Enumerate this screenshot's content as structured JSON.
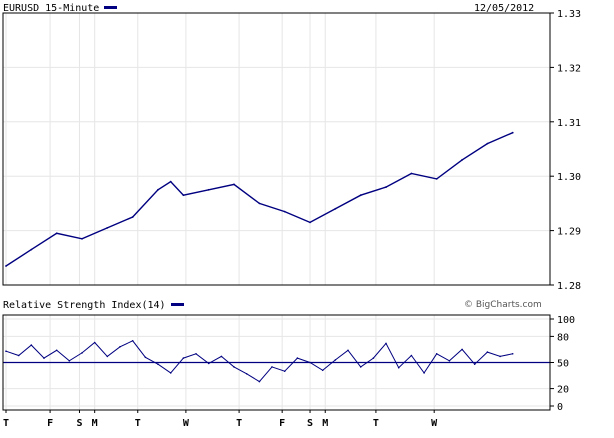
{
  "header": {
    "symbol_title": "EURUSD 15-Minute",
    "date": "12/05/2012"
  },
  "rsi_header": {
    "label": "Relative Strength Index(14)",
    "copyright": "© BigCharts.com"
  },
  "colors": {
    "series": "#000080",
    "grid": "#e6e6e6",
    "frame": "#000000",
    "background": "#ffffff"
  },
  "chart_data": [
    {
      "type": "line",
      "title": "EURUSD 15-Minute",
      "series": [
        {
          "name": "EURUSD 15-Minute",
          "x": [
            0,
            0.5,
            1,
            1.5,
            2,
            2.5,
            3,
            3.25,
            3.5,
            4,
            4.5,
            5,
            5.5,
            6,
            6.5,
            7,
            7.5,
            8,
            8.5,
            9,
            9.5,
            10
          ],
          "values": [
            1.2835,
            1.2865,
            1.2895,
            1.2885,
            1.2905,
            1.2925,
            1.2975,
            1.299,
            1.2965,
            1.2975,
            1.2985,
            1.295,
            1.2935,
            1.2915,
            1.294,
            1.2965,
            1.298,
            1.3005,
            1.2995,
            1.303,
            1.306,
            1.308
          ]
        }
      ],
      "ylim": [
        1.28,
        1.33
      ],
      "yticks": [
        "1.33",
        "1.32",
        "1.31",
        "1.30",
        "1.29",
        "1.28"
      ],
      "ytick_values": [
        1.33,
        1.32,
        1.31,
        1.3,
        1.29,
        1.28
      ],
      "grid": true
    },
    {
      "type": "line",
      "title": "Relative Strength Index(14)",
      "series": [
        {
          "name": "Relative Strength Index(14)",
          "x": [
            0,
            0.25,
            0.5,
            0.75,
            1,
            1.25,
            1.5,
            1.75,
            2,
            2.25,
            2.5,
            2.75,
            3,
            3.25,
            3.5,
            3.75,
            4,
            4.25,
            4.5,
            4.75,
            5,
            5.25,
            5.5,
            5.75,
            6,
            6.25,
            6.5,
            6.75,
            7,
            7.25,
            7.5,
            7.75,
            8,
            8.25,
            8.5,
            8.75,
            9,
            9.25,
            9.5,
            9.75,
            10
          ],
          "values": [
            63,
            58,
            70,
            55,
            64,
            52,
            61,
            73,
            57,
            68,
            75,
            56,
            48,
            38,
            55,
            60,
            49,
            57,
            45,
            37,
            28,
            45,
            40,
            55,
            50,
            41,
            53,
            64,
            45,
            55,
            72,
            44,
            58,
            38,
            60,
            52,
            65,
            48,
            62,
            57,
            60
          ]
        }
      ],
      "ylim": [
        0,
        100
      ],
      "yticks": [
        "100",
        "80",
        "50",
        "20",
        "0"
      ],
      "ytick_values": [
        100,
        80,
        50,
        20,
        0
      ],
      "reference_line": 50,
      "grid": true
    }
  ],
  "x_axis": {
    "labels": [
      "T",
      "F",
      "S",
      "M",
      "T",
      "W",
      "T",
      "F",
      "S",
      "M",
      "T",
      "W"
    ],
    "positions": [
      0,
      0.87,
      1.45,
      1.75,
      2.6,
      3.55,
      4.6,
      5.45,
      6.0,
      6.3,
      7.3,
      8.45
    ]
  }
}
